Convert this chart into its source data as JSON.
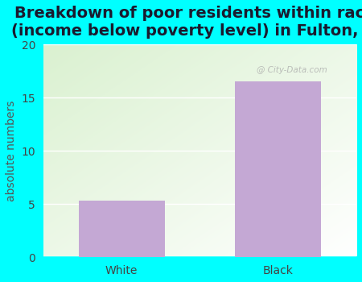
{
  "title": "Breakdown of poor residents within races\n(income below poverty level) in Fulton, AR",
  "categories": [
    "White",
    "Black"
  ],
  "values": [
    5.3,
    16.5
  ],
  "bar_color": "#c4a8d4",
  "ylabel": "absolute numbers",
  "ylim": [
    0,
    20
  ],
  "yticks": [
    0,
    5,
    10,
    15,
    20
  ],
  "background_outer": "#00ffff",
  "title_fontsize": 14,
  "axis_label_fontsize": 10,
  "tick_fontsize": 10,
  "title_color": "#1a1a2e",
  "ylabel_color": "#555555",
  "watermark": "@ City-Data.com"
}
